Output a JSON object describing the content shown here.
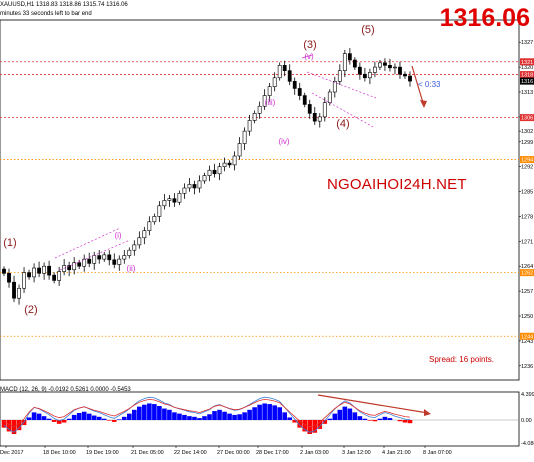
{
  "header": {
    "title": "XAUUSD,H1  1318.83 1318.86 1315.74 1316.06",
    "subtitle": "minutes 33 seconds left to bar end"
  },
  "current_price_big": "1316.06",
  "watermark": "NGOAIHOI24H.NET",
  "spread_text": "Spread: 16 points.",
  "bar_timer": "< 0:33",
  "colors": {
    "bull_candle": "#000000",
    "bear_candle": "#000000",
    "level_line": "#e03030",
    "hline_dotted": "#ff8c00",
    "wave_main": "#8b1a1a",
    "wave_sub": "#d030d0",
    "macd_up": "#0000ff",
    "macd_down": "#ff0000",
    "signal_blue": "#3a7fd9",
    "signal_red": "#e03030",
    "arrow": "#c0392b"
  },
  "price_axis_labels": [
    "1327",
    "1320",
    "1313",
    "1306",
    "1302",
    "1299",
    "1292",
    "1285",
    "1278",
    "1271",
    "1264",
    "1257",
    "1250",
    "1243",
    "1236"
  ],
  "price_tags": [
    {
      "label": "1321",
      "color": "#e03030",
      "price": 1321.5
    },
    {
      "label": "1318",
      "color": "#e03030",
      "price": 1317.9
    },
    {
      "label": "1316",
      "color": "#000000",
      "price": 1316.06
    },
    {
      "label": "1306",
      "color": "#e03030",
      "price": 1305.8
    },
    {
      "label": "1294",
      "color": "#ff8c00",
      "price": 1294.0
    },
    {
      "label": "1262",
      "color": "#ff8c00",
      "price": 1262.2
    },
    {
      "label": "1244",
      "color": "#ff8c00",
      "price": 1244.3
    }
  ],
  "time_axis_labels": [
    "Dec 2017",
    "18 Dec 10:00",
    "19 Dec 19:00",
    "21 Dec 05:00",
    "22 Dec 14:00",
    "27 Dec 00:00",
    "28 Dec 17:00",
    "2 Jan 03:00",
    "3 Jan 12:00",
    "4 Jan 21:00",
    "8 Jan 07:00"
  ],
  "wave_labels_main": [
    "(1)",
    "(2)",
    "(3)",
    "(4)",
    "(5)"
  ],
  "wave_labels_sub": [
    "(i)",
    "(ii)",
    "(iii)",
    "(iv)",
    "(v)"
  ],
  "macd": {
    "label": "MACD (12, 26, 9) -0.0192 0.5261 0.0000 -0.5453",
    "axis_labels": [
      "4.3994",
      "0.00",
      "-4.0863"
    ]
  },
  "chart_data": {
    "type": "candlestick",
    "symbol": "XAUUSD",
    "timeframe": "H1",
    "ylim": [
      1232,
      1331
    ],
    "close_series": [
      1262.0,
      1259.5,
      1255.0,
      1257.8,
      1262.2,
      1261.0,
      1263.5,
      1262.0,
      1264.0,
      1261.5,
      1260.0,
      1262.5,
      1264.2,
      1263.0,
      1265.0,
      1264.0,
      1266.0,
      1264.8,
      1267.0,
      1266.0,
      1267.2,
      1265.8,
      1264.5,
      1266.0,
      1267.0,
      1268.5,
      1270.0,
      1272.0,
      1274.0,
      1276.5,
      1278.0,
      1281.0,
      1282.5,
      1283.0,
      1282.0,
      1284.5,
      1286.0,
      1287.0,
      1286.0,
      1288.0,
      1289.5,
      1291.0,
      1290.0,
      1292.0,
      1293.0,
      1292.5,
      1295.0,
      1298.5,
      1302.0,
      1305.0,
      1307.0,
      1309.0,
      1312.0,
      1314.5,
      1317.0,
      1320.5,
      1319.0,
      1316.0,
      1314.0,
      1312.0,
      1309.5,
      1307.0,
      1304.8,
      1306.0,
      1310.0,
      1313.0,
      1316.0,
      1319.0,
      1323.8,
      1322.0,
      1320.0,
      1318.0,
      1317.0,
      1318.5,
      1320.0,
      1321.2,
      1320.5,
      1319.8,
      1320.0,
      1318.0,
      1317.5,
      1316.06
    ],
    "horizontal_levels": [
      1321.5,
      1317.9,
      1305.8
    ],
    "dotted_levels": [
      1294.0,
      1262.2,
      1244.3
    ],
    "macd_histogram": [
      -1.2,
      -1.8,
      -2.2,
      -1.6,
      -0.8,
      0.4,
      1.2,
      1.0,
      0.6,
      0.2,
      -0.3,
      -0.6,
      -0.4,
      0.2,
      0.8,
      1.1,
      1.3,
      1.0,
      0.7,
      0.5,
      0.2,
      -0.1,
      -0.3,
      0.1,
      0.5,
      1.0,
      1.6,
      2.1,
      2.4,
      2.6,
      2.5,
      2.2,
      1.8,
      1.6,
      1.2,
      1.0,
      0.8,
      0.6,
      0.5,
      0.3,
      0.6,
      0.9,
      1.4,
      1.6,
      1.3,
      1.0,
      0.8,
      0.9,
      1.2,
      1.6,
      2.0,
      2.4,
      2.6,
      2.5,
      2.3,
      2.0,
      1.2,
      0.4,
      -0.4,
      -1.2,
      -1.8,
      -2.2,
      -2.0,
      -1.4,
      -0.6,
      0.2,
      1.0,
      1.6,
      2.1,
      1.8,
      1.2,
      0.6,
      0.2,
      -0.1,
      -0.2,
      0.2,
      0.5,
      0.3,
      0.0,
      -0.2,
      -0.4,
      -0.5
    ],
    "macd_ylim": [
      -4.0863,
      4.3994
    ]
  }
}
